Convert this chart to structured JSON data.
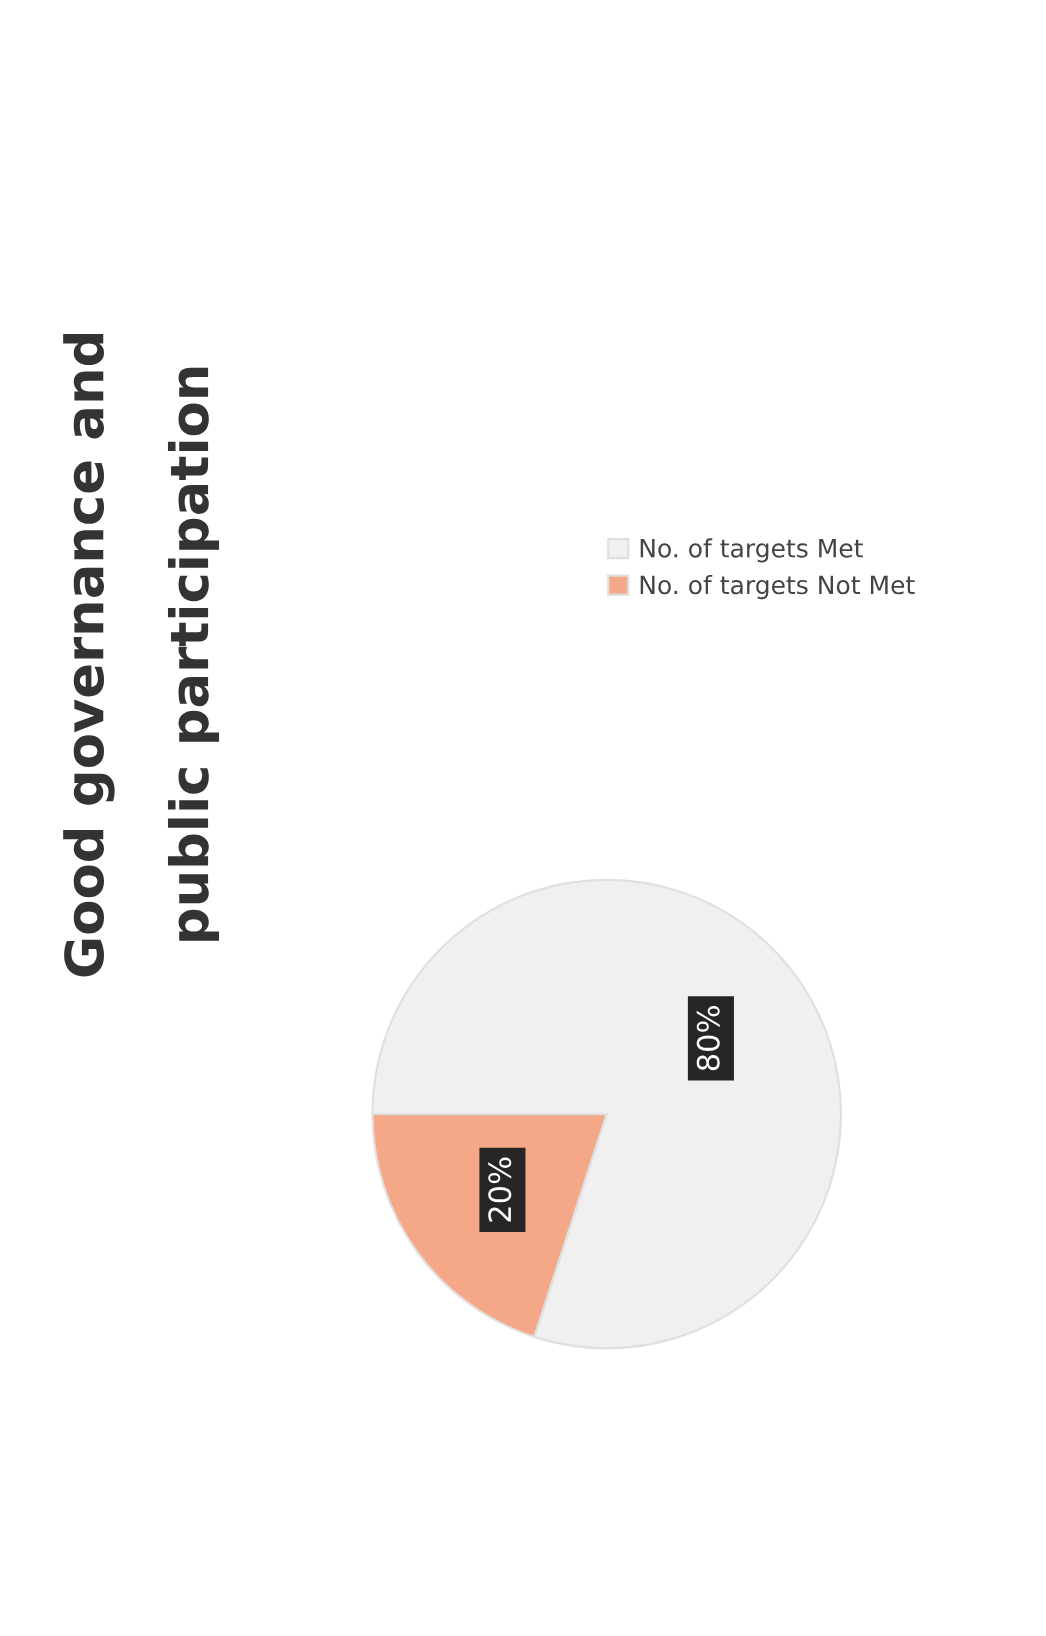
{
  "chart_data": {
    "type": "pie",
    "title": "Good governance and public participation",
    "categories": [
      "No. of targets Met",
      "No. of targets Not Met"
    ],
    "values": [
      80,
      20
    ],
    "value_labels": [
      "80%",
      "20%"
    ],
    "colors": [
      "#f0f0f0",
      "#f4a888"
    ],
    "legend": "top right"
  }
}
